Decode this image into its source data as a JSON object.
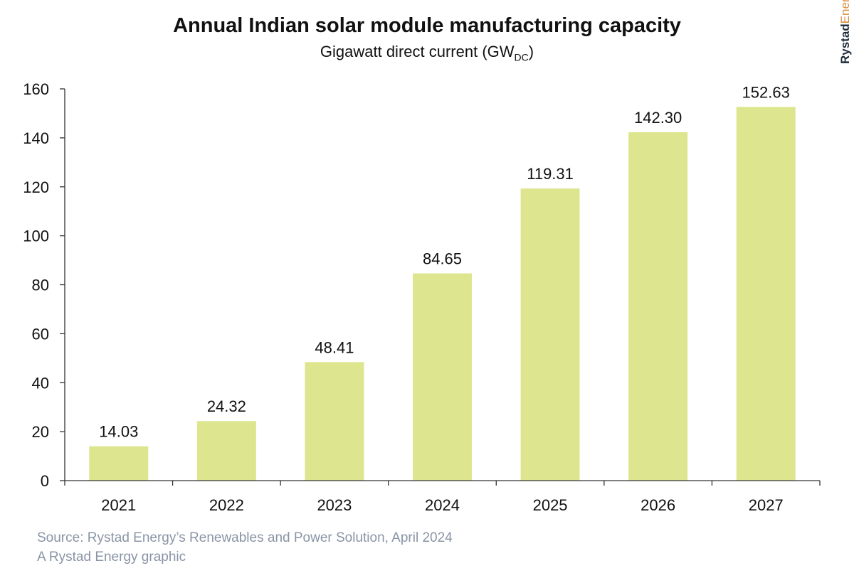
{
  "chart_data": {
    "type": "bar",
    "title": "Annual Indian solar module manufacturing capacity",
    "subtitle": "Gigawatt direct current (GW",
    "subtitle_sub": "DC",
    "subtitle_end": ")",
    "categories": [
      "2021",
      "2022",
      "2023",
      "2024",
      "2025",
      "2026",
      "2027"
    ],
    "values": [
      14.03,
      24.32,
      48.41,
      84.65,
      119.31,
      142.3,
      152.63
    ],
    "data_labels": [
      "14.03",
      "24.32",
      "48.41",
      "84.65",
      "119.31",
      "142.30",
      "152.63"
    ],
    "yticks": [
      0,
      20,
      40,
      60,
      80,
      100,
      120,
      140,
      160
    ],
    "ylim": [
      0,
      160
    ],
    "grid": false,
    "bar_color": "#dde68f"
  },
  "footer": {
    "source": "Source: Rystad Energy’s Renewables and Power Solution, April 2024",
    "credit": "A Rystad Energy graphic"
  },
  "logo": {
    "part1": "Rystad",
    "part2": "Energy"
  }
}
